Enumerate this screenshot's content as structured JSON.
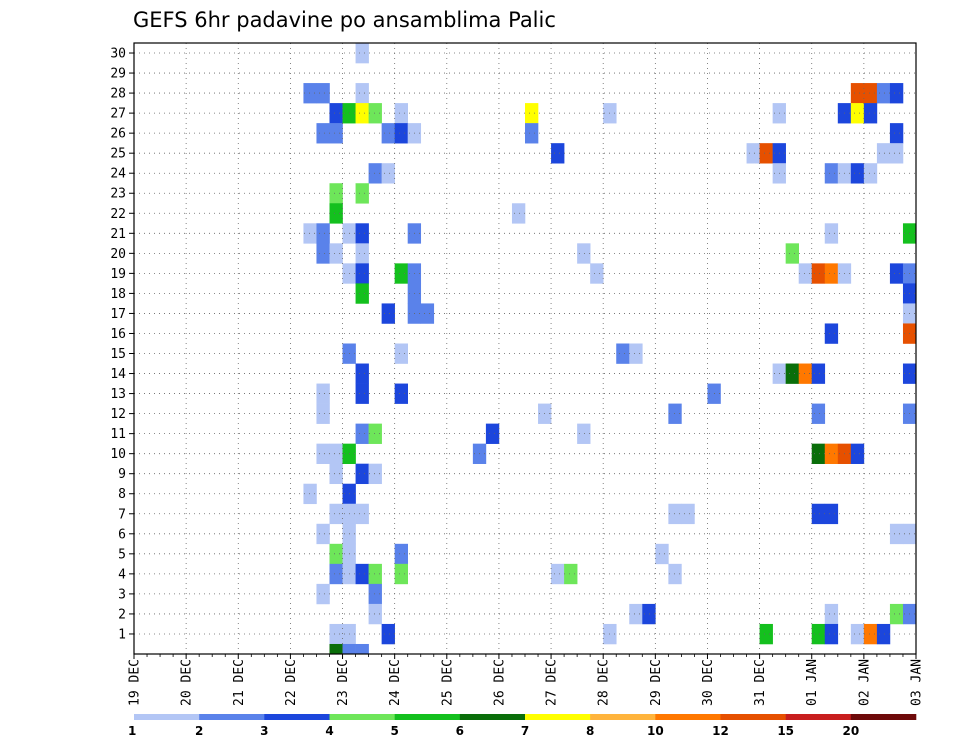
{
  "chart_data": {
    "type": "heatmap",
    "title": "GEFS 6hr padavine po ansamblima Palic",
    "x_tick_labels": [
      "19 DEC",
      "20 DEC",
      "21 DEC",
      "22 DEC",
      "23 DEC",
      "24 DEC",
      "25 DEC",
      "26 DEC",
      "27 DEC",
      "28 DEC",
      "29 DEC",
      "30 DEC",
      "31 DEC",
      "01 JAN",
      "02 JAN",
      "03 JAN"
    ],
    "y_tick_labels": [
      "1",
      "2",
      "3",
      "4",
      "5",
      "6",
      "7",
      "8",
      "9",
      "10",
      "11",
      "12",
      "13",
      "14",
      "15",
      "16",
      "17",
      "18",
      "19",
      "20",
      "21",
      "22",
      "23",
      "24",
      "25",
      "26",
      "27",
      "28",
      "29",
      "30"
    ],
    "time_step_hours": 6,
    "steps_per_day": 4,
    "members": 30,
    "grid": true,
    "legend_position": "bottom",
    "colorbar": {
      "labels": [
        "1",
        "2",
        "3",
        "4",
        "5",
        "6",
        "7",
        "8",
        "10",
        "12",
        "15",
        "20"
      ],
      "colors": [
        "#b3c6f5",
        "#5a82ea",
        "#1c46dc",
        "#6ee65a",
        "#14c01e",
        "#0a6e0a",
        "#ffff00",
        "#ffb43c",
        "#ff7800",
        "#e65000",
        "#c81e1e",
        "#6e0a0a"
      ]
    },
    "cells": [
      {
        "m": 30,
        "s": 17,
        "c": 0
      },
      {
        "m": 28,
        "s": 13,
        "c": 1
      },
      {
        "m": 28,
        "s": 14,
        "c": 1
      },
      {
        "m": 28,
        "s": 17,
        "c": 0
      },
      {
        "m": 28,
        "s": 55,
        "c": 9
      },
      {
        "m": 28,
        "s": 56,
        "c": 9
      },
      {
        "m": 28,
        "s": 57,
        "c": 1
      },
      {
        "m": 28,
        "s": 58,
        "c": 2
      },
      {
        "m": 27,
        "s": 15,
        "c": 2
      },
      {
        "m": 27,
        "s": 16,
        "c": 4
      },
      {
        "m": 27,
        "s": 17,
        "c": 6
      },
      {
        "m": 27,
        "s": 18,
        "c": 3
      },
      {
        "m": 27,
        "s": 20,
        "c": 0
      },
      {
        "m": 27,
        "s": 30,
        "c": 6
      },
      {
        "m": 27,
        "s": 36,
        "c": 0
      },
      {
        "m": 27,
        "s": 49,
        "c": 0
      },
      {
        "m": 27,
        "s": 54,
        "c": 2
      },
      {
        "m": 27,
        "s": 55,
        "c": 6
      },
      {
        "m": 27,
        "s": 56,
        "c": 2
      },
      {
        "m": 26,
        "s": 14,
        "c": 1
      },
      {
        "m": 26,
        "s": 15,
        "c": 1
      },
      {
        "m": 26,
        "s": 19,
        "c": 1
      },
      {
        "m": 26,
        "s": 20,
        "c": 2
      },
      {
        "m": 26,
        "s": 21,
        "c": 0
      },
      {
        "m": 26,
        "s": 30,
        "c": 1
      },
      {
        "m": 26,
        "s": 58,
        "c": 2
      },
      {
        "m": 25,
        "s": 32,
        "c": 2
      },
      {
        "m": 25,
        "s": 47,
        "c": 0
      },
      {
        "m": 25,
        "s": 48,
        "c": 9
      },
      {
        "m": 25,
        "s": 49,
        "c": 2
      },
      {
        "m": 25,
        "s": 57,
        "c": 0
      },
      {
        "m": 25,
        "s": 58,
        "c": 0
      },
      {
        "m": 24,
        "s": 18,
        "c": 1
      },
      {
        "m": 24,
        "s": 19,
        "c": 0
      },
      {
        "m": 24,
        "s": 49,
        "c": 0
      },
      {
        "m": 24,
        "s": 53,
        "c": 1
      },
      {
        "m": 24,
        "s": 54,
        "c": 0
      },
      {
        "m": 24,
        "s": 55,
        "c": 2
      },
      {
        "m": 24,
        "s": 56,
        "c": 0
      },
      {
        "m": 23,
        "s": 15,
        "c": 3
      },
      {
        "m": 23,
        "s": 17,
        "c": 3
      },
      {
        "m": 22,
        "s": 15,
        "c": 4
      },
      {
        "m": 22,
        "s": 29,
        "c": 0
      },
      {
        "m": 21,
        "s": 13,
        "c": 0
      },
      {
        "m": 21,
        "s": 14,
        "c": 1
      },
      {
        "m": 21,
        "s": 16,
        "c": 0
      },
      {
        "m": 21,
        "s": 17,
        "c": 2
      },
      {
        "m": 21,
        "s": 21,
        "c": 1
      },
      {
        "m": 21,
        "s": 53,
        "c": 0
      },
      {
        "m": 21,
        "s": 59,
        "c": 4
      },
      {
        "m": 20,
        "s": 14,
        "c": 1
      },
      {
        "m": 20,
        "s": 15,
        "c": 0
      },
      {
        "m": 20,
        "s": 17,
        "c": 0
      },
      {
        "m": 20,
        "s": 34,
        "c": 0
      },
      {
        "m": 20,
        "s": 50,
        "c": 3
      },
      {
        "m": 19,
        "s": 16,
        "c": 0
      },
      {
        "m": 19,
        "s": 17,
        "c": 2
      },
      {
        "m": 19,
        "s": 20,
        "c": 4
      },
      {
        "m": 19,
        "s": 21,
        "c": 1
      },
      {
        "m": 19,
        "s": 35,
        "c": 0
      },
      {
        "m": 19,
        "s": 51,
        "c": 0
      },
      {
        "m": 19,
        "s": 52,
        "c": 9
      },
      {
        "m": 19,
        "s": 53,
        "c": 8
      },
      {
        "m": 19,
        "s": 54,
        "c": 0
      },
      {
        "m": 19,
        "s": 58,
        "c": 2
      },
      {
        "m": 19,
        "s": 59,
        "c": 1
      },
      {
        "m": 18,
        "s": 17,
        "c": 4
      },
      {
        "m": 18,
        "s": 21,
        "c": 1
      },
      {
        "m": 18,
        "s": 59,
        "c": 2
      },
      {
        "m": 17,
        "s": 19,
        "c": 2
      },
      {
        "m": 17,
        "s": 21,
        "c": 1
      },
      {
        "m": 17,
        "s": 22,
        "c": 1
      },
      {
        "m": 17,
        "s": 59,
        "c": 0
      },
      {
        "m": 16,
        "s": 53,
        "c": 2
      },
      {
        "m": 16,
        "s": 59,
        "c": 9
      },
      {
        "m": 15,
        "s": 16,
        "c": 1
      },
      {
        "m": 15,
        "s": 20,
        "c": 0
      },
      {
        "m": 15,
        "s": 37,
        "c": 1
      },
      {
        "m": 15,
        "s": 38,
        "c": 0
      },
      {
        "m": 14,
        "s": 17,
        "c": 2
      },
      {
        "m": 14,
        "s": 49,
        "c": 0
      },
      {
        "m": 14,
        "s": 50,
        "c": 5
      },
      {
        "m": 14,
        "s": 51,
        "c": 8
      },
      {
        "m": 14,
        "s": 52,
        "c": 2
      },
      {
        "m": 14,
        "s": 59,
        "c": 2
      },
      {
        "m": 13,
        "s": 14,
        "c": 0
      },
      {
        "m": 13,
        "s": 17,
        "c": 2
      },
      {
        "m": 13,
        "s": 20,
        "c": 2
      },
      {
        "m": 13,
        "s": 44,
        "c": 1
      },
      {
        "m": 12,
        "s": 14,
        "c": 0
      },
      {
        "m": 12,
        "s": 31,
        "c": 0
      },
      {
        "m": 12,
        "s": 41,
        "c": 1
      },
      {
        "m": 12,
        "s": 52,
        "c": 1
      },
      {
        "m": 12,
        "s": 59,
        "c": 1
      },
      {
        "m": 11,
        "s": 17,
        "c": 1
      },
      {
        "m": 11,
        "s": 18,
        "c": 3
      },
      {
        "m": 11,
        "s": 27,
        "c": 2
      },
      {
        "m": 11,
        "s": 34,
        "c": 0
      },
      {
        "m": 10,
        "s": 14,
        "c": 0
      },
      {
        "m": 10,
        "s": 15,
        "c": 0
      },
      {
        "m": 10,
        "s": 16,
        "c": 4
      },
      {
        "m": 10,
        "s": 26,
        "c": 1
      },
      {
        "m": 10,
        "s": 52,
        "c": 5
      },
      {
        "m": 10,
        "s": 53,
        "c": 8
      },
      {
        "m": 10,
        "s": 54,
        "c": 9
      },
      {
        "m": 10,
        "s": 55,
        "c": 2
      },
      {
        "m": 9,
        "s": 15,
        "c": 0
      },
      {
        "m": 9,
        "s": 17,
        "c": 2
      },
      {
        "m": 9,
        "s": 18,
        "c": 0
      },
      {
        "m": 8,
        "s": 13,
        "c": 0
      },
      {
        "m": 8,
        "s": 16,
        "c": 2
      },
      {
        "m": 7,
        "s": 15,
        "c": 0
      },
      {
        "m": 7,
        "s": 16,
        "c": 0
      },
      {
        "m": 7,
        "s": 17,
        "c": 0
      },
      {
        "m": 7,
        "s": 41,
        "c": 0
      },
      {
        "m": 7,
        "s": 42,
        "c": 0
      },
      {
        "m": 7,
        "s": 52,
        "c": 2
      },
      {
        "m": 7,
        "s": 53,
        "c": 2
      },
      {
        "m": 6,
        "s": 14,
        "c": 0
      },
      {
        "m": 6,
        "s": 16,
        "c": 0
      },
      {
        "m": 6,
        "s": 58,
        "c": 0
      },
      {
        "m": 6,
        "s": 59,
        "c": 0
      },
      {
        "m": 5,
        "s": 15,
        "c": 3
      },
      {
        "m": 5,
        "s": 16,
        "c": 0
      },
      {
        "m": 5,
        "s": 20,
        "c": 1
      },
      {
        "m": 5,
        "s": 40,
        "c": 0
      },
      {
        "m": 4,
        "s": 15,
        "c": 1
      },
      {
        "m": 4,
        "s": 16,
        "c": 0
      },
      {
        "m": 4,
        "s": 17,
        "c": 2
      },
      {
        "m": 4,
        "s": 18,
        "c": 3
      },
      {
        "m": 4,
        "s": 20,
        "c": 3
      },
      {
        "m": 4,
        "s": 32,
        "c": 0
      },
      {
        "m": 4,
        "s": 33,
        "c": 3
      },
      {
        "m": 4,
        "s": 41,
        "c": 0
      },
      {
        "m": 3,
        "s": 14,
        "c": 0
      },
      {
        "m": 3,
        "s": 18,
        "c": 1
      },
      {
        "m": 2,
        "s": 18,
        "c": 0
      },
      {
        "m": 2,
        "s": 38,
        "c": 0
      },
      {
        "m": 2,
        "s": 39,
        "c": 2
      },
      {
        "m": 2,
        "s": 53,
        "c": 0
      },
      {
        "m": 2,
        "s": 58,
        "c": 3
      },
      {
        "m": 2,
        "s": 59,
        "c": 1
      },
      {
        "m": 1,
        "s": 15,
        "c": 0
      },
      {
        "m": 1,
        "s": 16,
        "c": 0
      },
      {
        "m": 1,
        "s": 19,
        "c": 2
      },
      {
        "m": 1,
        "s": 36,
        "c": 0
      },
      {
        "m": 1,
        "s": 48,
        "c": 4
      },
      {
        "m": 1,
        "s": 52,
        "c": 4
      },
      {
        "m": 1,
        "s": 53,
        "c": 2
      },
      {
        "m": 1,
        "s": 55,
        "c": 0
      },
      {
        "m": 1,
        "s": 56,
        "c": 8
      },
      {
        "m": 1,
        "s": 57,
        "c": 2
      },
      {
        "m": 0,
        "s": 15,
        "c": 5
      },
      {
        "m": 0,
        "s": 16,
        "c": 1
      },
      {
        "m": 0,
        "s": 17,
        "c": 1
      }
    ]
  }
}
